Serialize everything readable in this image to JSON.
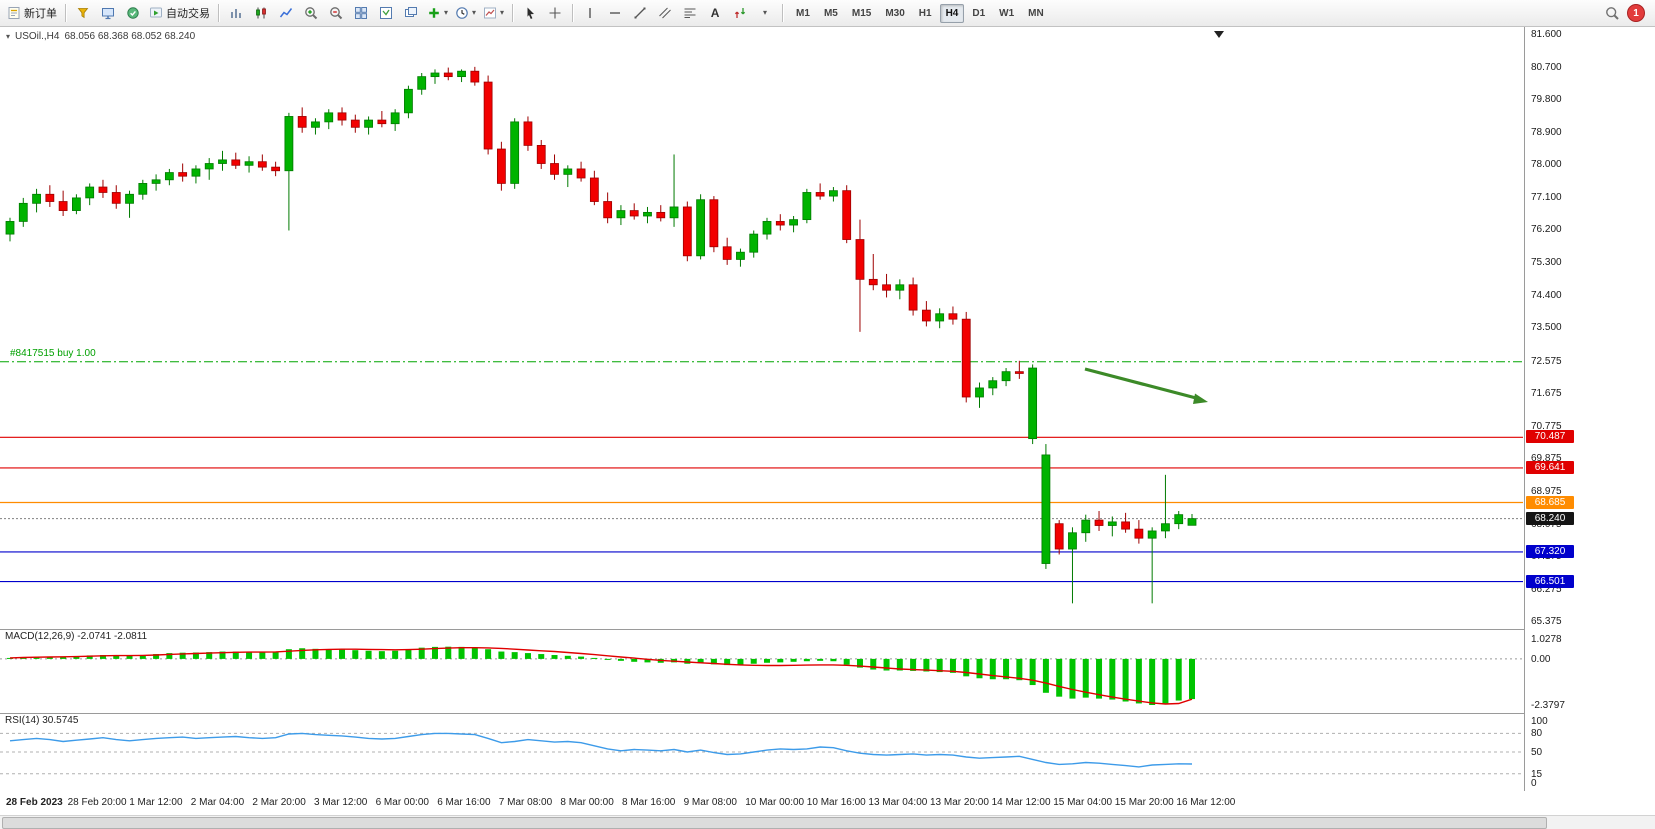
{
  "toolbar": {
    "new_order_label": "新订单",
    "autotrading_label": "自动交易",
    "timeframes": [
      "M1",
      "M5",
      "M15",
      "M30",
      "H1",
      "H4",
      "D1",
      "W1",
      "MN"
    ],
    "active_timeframe": "H4",
    "notification_count": "1",
    "icons": {
      "caret": "▾",
      "text_tool": "A",
      "collapse": "▾"
    }
  },
  "chart": {
    "symbol": "USOil.,H4",
    "ohlc": "68.056 68.368 68.052 68.240",
    "order_line": {
      "label": "#8417515 buy 1.00",
      "price": 72.575,
      "color": "#00a500"
    },
    "hlines": [
      {
        "price": 70.487,
        "label": "70.487",
        "color": "#e00000"
      },
      {
        "price": 69.641,
        "label": "69.641",
        "color": "#e00000"
      },
      {
        "price": 68.685,
        "label": "68.685",
        "color": "#ff8c00"
      },
      {
        "price": 67.32,
        "label": "67.320",
        "color": "#0000cc"
      },
      {
        "price": 66.501,
        "label": "66.501",
        "color": "#0000cc"
      }
    ],
    "current_price": {
      "price": 68.24,
      "label": "68.240",
      "color": "#141414"
    },
    "price_scale": [
      "81.600",
      "80.700",
      "79.800",
      "78.900",
      "78.000",
      "77.100",
      "76.200",
      "75.300",
      "74.400",
      "73.500",
      "72.575",
      "71.675",
      "70.775",
      "69.875",
      "68.975",
      "68.075",
      "67.175",
      "66.275",
      "65.375"
    ],
    "colors": {
      "up": "#00b300",
      "down": "#f20000",
      "up_edge": "#007a00",
      "down_edge": "#9e0000"
    },
    "arrow_color": "#3c8a28"
  },
  "chart_data": {
    "type": "candlestick",
    "title": "USOil H4 candlestick chart with MACD and RSI",
    "ylim": [
      65.375,
      81.6
    ],
    "candles": [
      [
        76.1,
        76.55,
        75.9,
        76.45
      ],
      [
        76.45,
        77.1,
        76.3,
        76.95
      ],
      [
        76.95,
        77.35,
        76.7,
        77.2
      ],
      [
        77.2,
        77.45,
        76.85,
        77.0
      ],
      [
        77.0,
        77.3,
        76.6,
        76.75
      ],
      [
        76.75,
        77.2,
        76.65,
        77.1
      ],
      [
        77.1,
        77.5,
        76.9,
        77.4
      ],
      [
        77.4,
        77.6,
        77.1,
        77.25
      ],
      [
        77.25,
        77.45,
        76.8,
        76.95
      ],
      [
        76.95,
        77.3,
        76.55,
        77.2
      ],
      [
        77.2,
        77.6,
        77.05,
        77.5
      ],
      [
        77.5,
        77.75,
        77.3,
        77.6
      ],
      [
        77.6,
        77.9,
        77.45,
        77.8
      ],
      [
        77.8,
        78.05,
        77.55,
        77.7
      ],
      [
        77.7,
        78.0,
        77.5,
        77.9
      ],
      [
        77.9,
        78.2,
        77.6,
        78.05
      ],
      [
        78.05,
        78.4,
        77.85,
        78.15
      ],
      [
        78.15,
        78.35,
        77.9,
        78.0
      ],
      [
        78.0,
        78.25,
        77.8,
        78.1
      ],
      [
        78.1,
        78.3,
        77.85,
        77.95
      ],
      [
        77.95,
        78.1,
        77.7,
        77.85
      ],
      [
        77.85,
        79.45,
        76.2,
        79.35
      ],
      [
        79.35,
        79.6,
        78.9,
        79.05
      ],
      [
        79.05,
        79.3,
        78.85,
        79.2
      ],
      [
        79.2,
        79.55,
        79.0,
        79.45
      ],
      [
        79.45,
        79.6,
        79.1,
        79.25
      ],
      [
        79.25,
        79.4,
        78.9,
        79.05
      ],
      [
        79.05,
        79.35,
        78.85,
        79.25
      ],
      [
        79.25,
        79.5,
        79.05,
        79.15
      ],
      [
        79.15,
        79.55,
        78.95,
        79.45
      ],
      [
        79.45,
        80.2,
        79.3,
        80.1
      ],
      [
        80.1,
        80.55,
        79.95,
        80.45
      ],
      [
        80.45,
        80.65,
        80.25,
        80.55
      ],
      [
        80.55,
        80.7,
        80.35,
        80.45
      ],
      [
        80.45,
        80.65,
        80.3,
        80.6
      ],
      [
        80.6,
        80.72,
        80.2,
        80.3
      ],
      [
        80.3,
        80.48,
        78.3,
        78.45
      ],
      [
        78.45,
        78.65,
        77.3,
        77.5
      ],
      [
        77.5,
        79.3,
        77.35,
        79.2
      ],
      [
        79.2,
        79.35,
        78.4,
        78.55
      ],
      [
        78.55,
        78.7,
        77.9,
        78.05
      ],
      [
        78.05,
        78.3,
        77.6,
        77.75
      ],
      [
        77.75,
        78.0,
        77.4,
        77.9
      ],
      [
        77.9,
        78.1,
        77.55,
        77.65
      ],
      [
        77.65,
        77.85,
        76.9,
        77.0
      ],
      [
        77.0,
        77.25,
        76.4,
        76.55
      ],
      [
        76.55,
        76.9,
        76.35,
        76.75
      ],
      [
        76.75,
        76.95,
        76.5,
        76.6
      ],
      [
        76.6,
        76.85,
        76.4,
        76.7
      ],
      [
        76.7,
        76.9,
        76.45,
        76.55
      ],
      [
        76.55,
        78.3,
        76.3,
        76.85
      ],
      [
        76.85,
        77.0,
        75.35,
        75.5
      ],
      [
        75.5,
        77.2,
        75.4,
        77.05
      ],
      [
        77.05,
        77.15,
        75.6,
        75.75
      ],
      [
        75.75,
        76.0,
        75.25,
        75.4
      ],
      [
        75.4,
        75.7,
        75.2,
        75.6
      ],
      [
        75.6,
        76.2,
        75.45,
        76.1
      ],
      [
        76.1,
        76.55,
        75.95,
        76.45
      ],
      [
        76.45,
        76.65,
        76.2,
        76.35
      ],
      [
        76.35,
        76.6,
        76.15,
        76.5
      ],
      [
        76.5,
        77.35,
        76.4,
        77.25
      ],
      [
        77.25,
        77.5,
        77.05,
        77.15
      ],
      [
        77.15,
        77.4,
        77.0,
        77.3
      ],
      [
        77.3,
        77.45,
        75.85,
        75.95
      ],
      [
        75.95,
        76.5,
        73.4,
        74.85
      ],
      [
        74.85,
        75.55,
        74.55,
        74.7
      ],
      [
        74.7,
        75.0,
        74.35,
        74.55
      ],
      [
        74.55,
        74.85,
        74.3,
        74.7
      ],
      [
        74.7,
        74.9,
        73.85,
        74.0
      ],
      [
        74.0,
        74.25,
        73.55,
        73.7
      ],
      [
        73.7,
        74.05,
        73.5,
        73.9
      ],
      [
        73.9,
        74.1,
        73.6,
        73.75
      ],
      [
        73.75,
        73.95,
        71.45,
        71.6
      ],
      [
        71.6,
        72.0,
        71.3,
        71.85
      ],
      [
        71.85,
        72.15,
        71.65,
        72.05
      ],
      [
        72.05,
        72.4,
        71.9,
        72.3
      ],
      [
        72.3,
        72.6,
        72.1,
        72.25
      ],
      [
        70.45,
        72.5,
        70.3,
        72.4
      ],
      [
        67.0,
        70.3,
        66.85,
        70.0
      ],
      [
        68.1,
        68.2,
        67.25,
        67.4
      ],
      [
        67.4,
        68.0,
        65.9,
        67.85
      ],
      [
        67.85,
        68.35,
        67.6,
        68.2
      ],
      [
        68.2,
        68.45,
        67.9,
        68.05
      ],
      [
        68.05,
        68.3,
        67.75,
        68.15
      ],
      [
        68.15,
        68.4,
        67.85,
        67.95
      ],
      [
        67.95,
        68.2,
        67.55,
        67.7
      ],
      [
        67.7,
        68.0,
        65.9,
        67.9
      ],
      [
        67.9,
        69.45,
        67.7,
        68.1
      ],
      [
        68.1,
        68.45,
        67.95,
        68.35
      ],
      [
        68.056,
        68.368,
        68.052,
        68.24
      ]
    ],
    "macd": {
      "label": "MACD(12,26,9) -2.0741 -2.0811",
      "scale": [
        "1.0278",
        "0.00",
        "-2.3797"
      ],
      "range": [
        -2.3797,
        1.0278
      ],
      "hist_color": "#00c400",
      "signal_color": "#e00000",
      "hist": [
        0.05,
        0.08,
        0.1,
        0.12,
        0.12,
        0.14,
        0.18,
        0.2,
        0.18,
        0.16,
        0.2,
        0.25,
        0.3,
        0.32,
        0.33,
        0.35,
        0.38,
        0.38,
        0.36,
        0.34,
        0.35,
        0.5,
        0.55,
        0.52,
        0.5,
        0.48,
        0.45,
        0.42,
        0.4,
        0.42,
        0.5,
        0.58,
        0.62,
        0.63,
        0.62,
        0.6,
        0.5,
        0.38,
        0.35,
        0.3,
        0.25,
        0.2,
        0.16,
        0.12,
        0.05,
        -0.05,
        -0.1,
        -0.15,
        -0.18,
        -0.2,
        -0.18,
        -0.25,
        -0.22,
        -0.28,
        -0.32,
        -0.3,
        -0.25,
        -0.2,
        -0.18,
        -0.15,
        -0.12,
        -0.1,
        -0.12,
        -0.3,
        -0.45,
        -0.55,
        -0.6,
        -0.6,
        -0.62,
        -0.65,
        -0.68,
        -0.72,
        -0.9,
        -1.0,
        -1.05,
        -1.05,
        -1.1,
        -1.35,
        -1.75,
        -1.95,
        -2.05,
        -2.0,
        -2.05,
        -2.1,
        -2.2,
        -2.3,
        -2.38,
        -2.3,
        -2.15,
        -2.0741
      ],
      "signal": [
        0.05,
        0.07,
        0.09,
        0.1,
        0.11,
        0.12,
        0.14,
        0.16,
        0.17,
        0.17,
        0.18,
        0.2,
        0.23,
        0.26,
        0.28,
        0.3,
        0.32,
        0.34,
        0.35,
        0.35,
        0.36,
        0.4,
        0.44,
        0.47,
        0.49,
        0.5,
        0.5,
        0.49,
        0.48,
        0.47,
        0.48,
        0.5,
        0.53,
        0.56,
        0.58,
        0.58,
        0.57,
        0.54,
        0.5,
        0.46,
        0.42,
        0.38,
        0.33,
        0.28,
        0.22,
        0.16,
        0.1,
        0.04,
        -0.02,
        -0.08,
        -0.12,
        -0.16,
        -0.2,
        -0.24,
        -0.28,
        -0.31,
        -0.33,
        -0.34,
        -0.34,
        -0.33,
        -0.32,
        -0.31,
        -0.31,
        -0.33,
        -0.37,
        -0.42,
        -0.47,
        -0.52,
        -0.55,
        -0.58,
        -0.61,
        -0.64,
        -0.7,
        -0.78,
        -0.86,
        -0.93,
        -1.0,
        -1.1,
        -1.25,
        -1.42,
        -1.58,
        -1.72,
        -1.85,
        -1.97,
        -2.08,
        -2.18,
        -2.27,
        -2.33,
        -2.3,
        -2.0811
      ]
    },
    "rsi": {
      "label": "RSI(14) 30.5745",
      "scale": [
        "100",
        "80",
        "50",
        "15",
        "0"
      ],
      "levels": [
        80,
        50,
        15
      ],
      "range": [
        0,
        100
      ],
      "line_color": "#3d9be9",
      "values": [
        68,
        70,
        72,
        70,
        67,
        69,
        71,
        73,
        70,
        68,
        70,
        72,
        73,
        74,
        72,
        73,
        74,
        75,
        73,
        72,
        73,
        79,
        80,
        78,
        77,
        76,
        74,
        72,
        71,
        72,
        75,
        78,
        80,
        80,
        79,
        78,
        72,
        65,
        67,
        70,
        68,
        66,
        67,
        65,
        60,
        55,
        52,
        54,
        53,
        52,
        54,
        50,
        53,
        49,
        46,
        47,
        50,
        53,
        55,
        54,
        55,
        58,
        57,
        52,
        48,
        46,
        45,
        46,
        47,
        45,
        46,
        45,
        42,
        40,
        41,
        42,
        43,
        38,
        33,
        30,
        31,
        33,
        32,
        30,
        28,
        26,
        29,
        30,
        31,
        30.57
      ]
    }
  },
  "time_axis": [
    "28 Feb 2023",
    "28 Feb 20:00",
    "1 Mar 12:00",
    "2 Mar 04:00",
    "2 Mar 20:00",
    "3 Mar 12:00",
    "6 Mar 00:00",
    "6 Mar 16:00",
    "7 Mar 08:00",
    "8 Mar 00:00",
    "8 Mar 16:00",
    "9 Mar 08:00",
    "10 Mar 00:00",
    "10 Mar 16:00",
    "13 Mar 04:00",
    "13 Mar 20:00",
    "14 Mar 12:00",
    "15 Mar 04:00",
    "15 Mar 20:00",
    "16 Mar 12:00"
  ]
}
